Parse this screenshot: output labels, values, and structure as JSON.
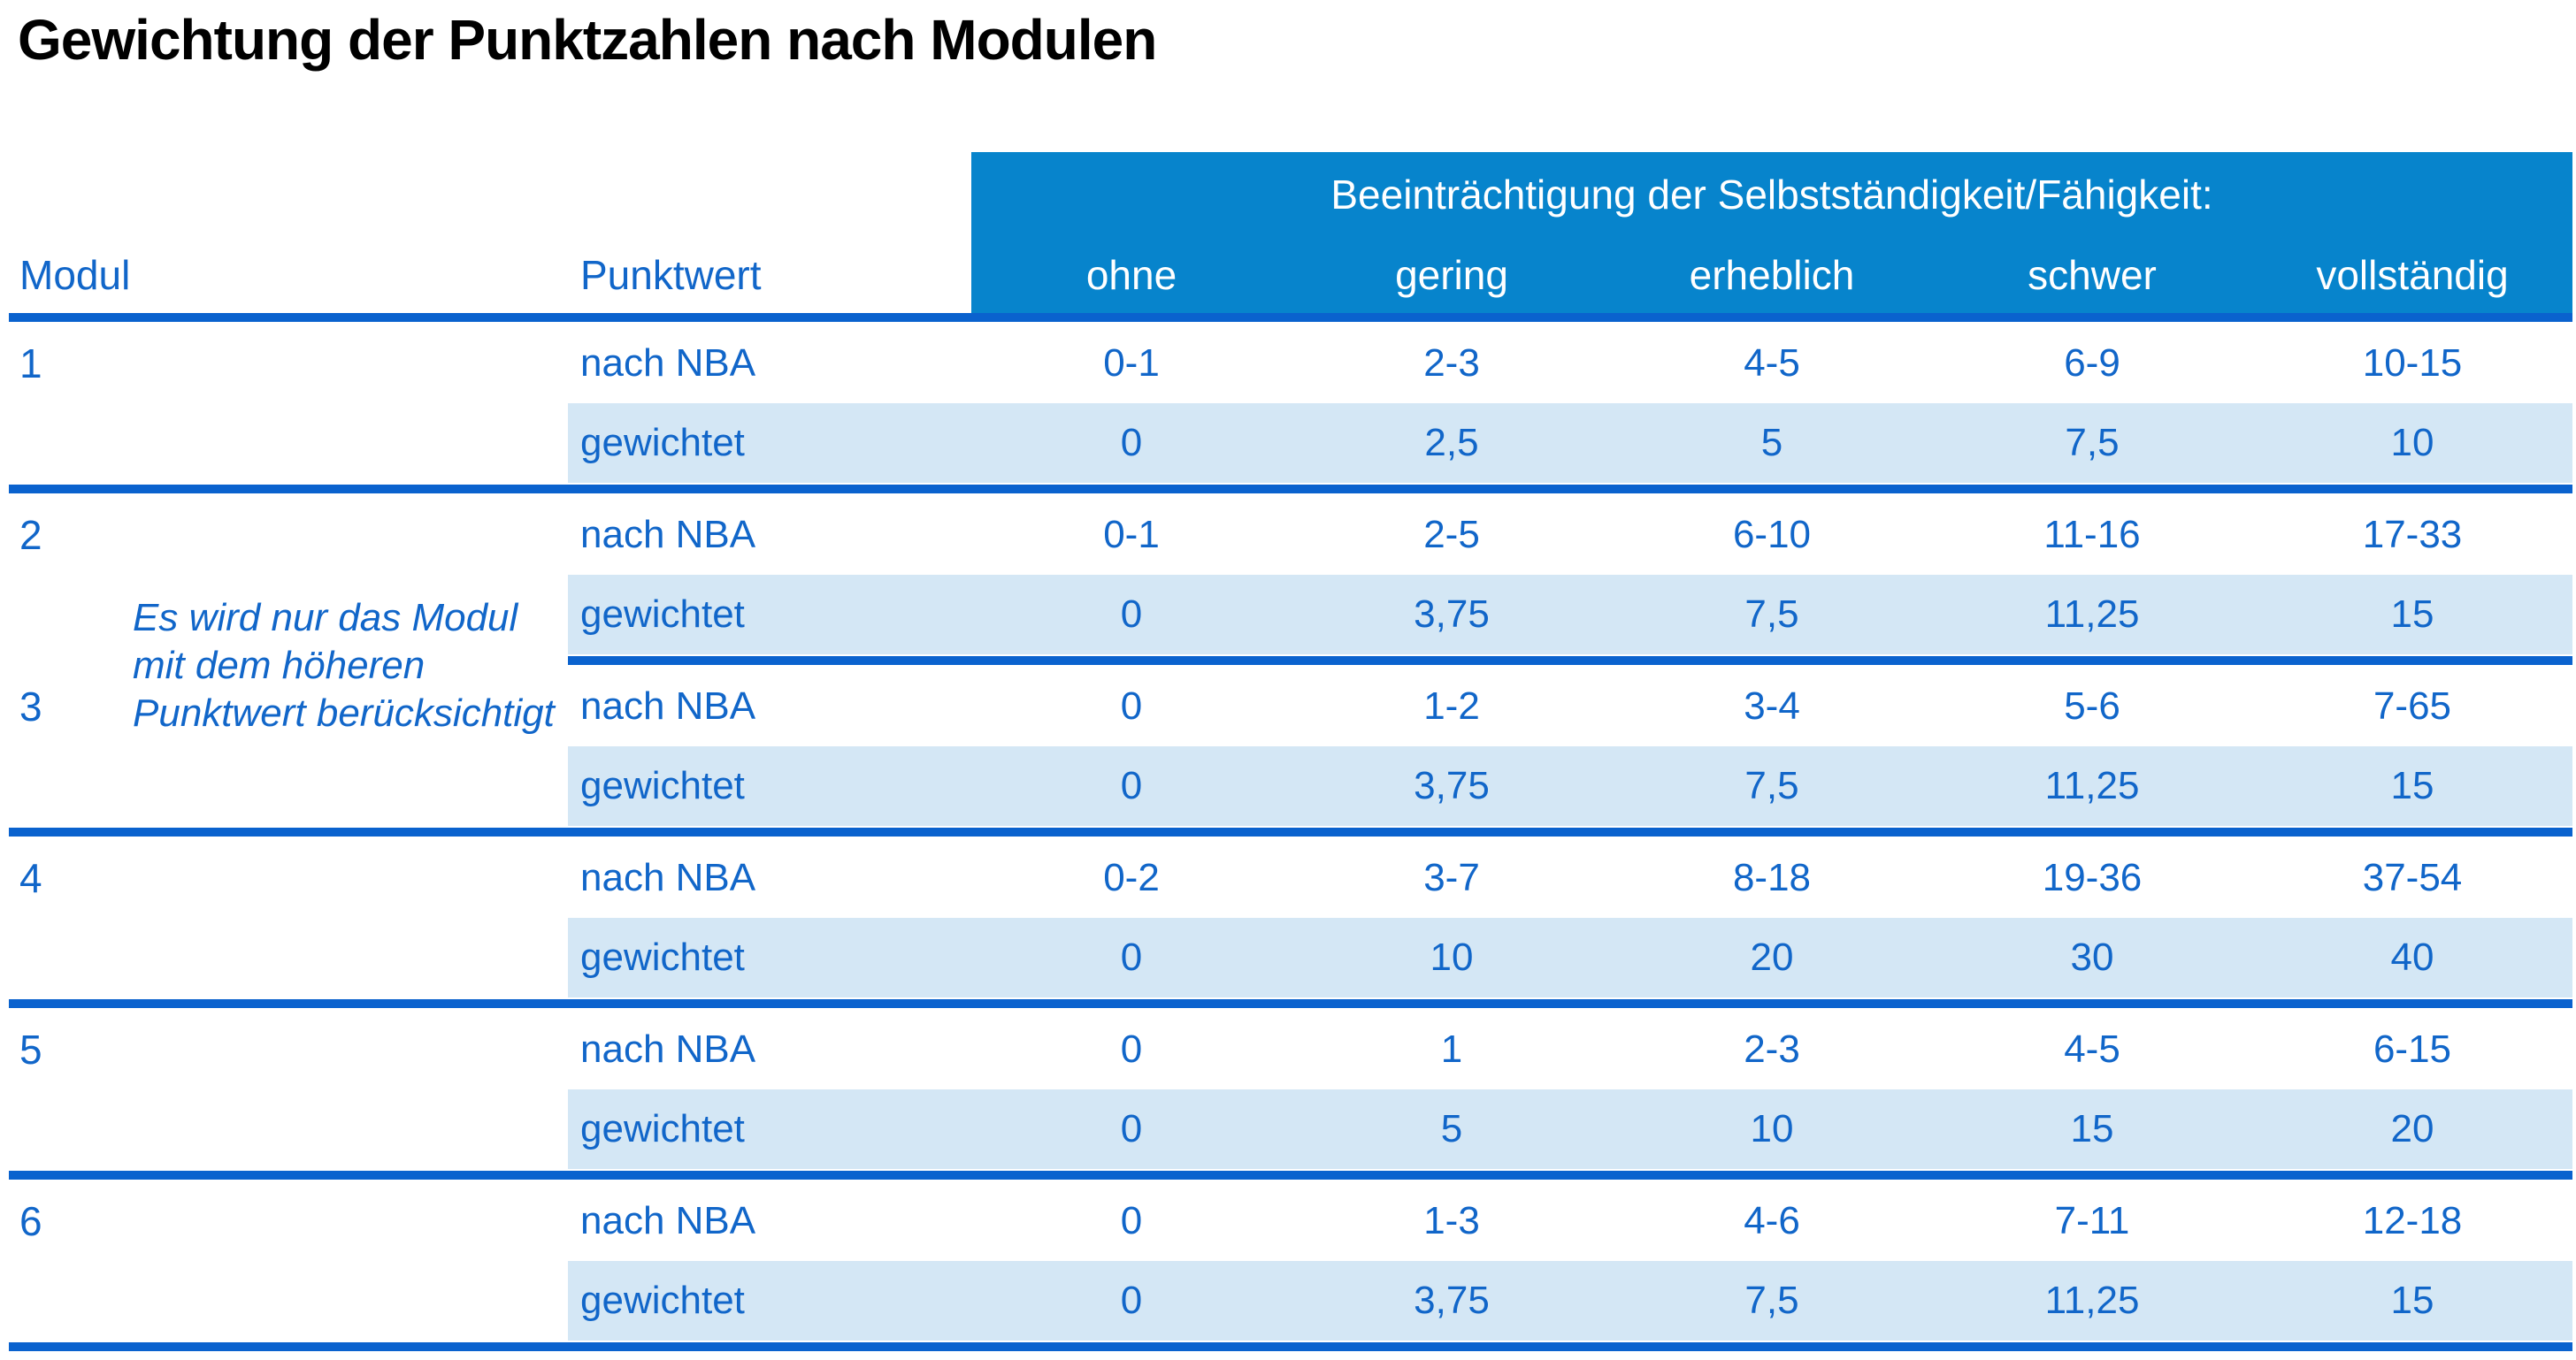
{
  "title": "Gewichtung der Punktzahlen nach Modulen",
  "table": {
    "col_modul": "Modul",
    "col_punktwert": "Punktwert",
    "band_title": "Beeinträchtigung der Selbstständigkeit/Fähigkeit:",
    "severity_labels": [
      "ohne",
      "gering",
      "erheblich",
      "schwer",
      "vollständig"
    ],
    "row_label_nba": "nach NBA",
    "row_label_weighted": "gewichtet",
    "note_lines": [
      "Es wird nur das Modul",
      "mit dem höheren",
      "Punktwert berücksichtigt"
    ],
    "modules": [
      {
        "id": "1",
        "nba": [
          "0-1",
          "2-3",
          "4-5",
          "6-9",
          "10-15"
        ],
        "gewichtet": [
          "0",
          "2,5",
          "5",
          "7,5",
          "10"
        ]
      },
      {
        "id": "2",
        "nba": [
          "0-1",
          "2-5",
          "6-10",
          "11-16",
          "17-33"
        ],
        "gewichtet": [
          "0",
          "3,75",
          "7,5",
          "11,25",
          "15"
        ]
      },
      {
        "id": "3",
        "nba": [
          "0",
          "1-2",
          "3-4",
          "5-6",
          "7-65"
        ],
        "gewichtet": [
          "0",
          "3,75",
          "7,5",
          "11,25",
          "15"
        ]
      },
      {
        "id": "4",
        "nba": [
          "0-2",
          "3-7",
          "8-18",
          "19-36",
          "37-54"
        ],
        "gewichtet": [
          "0",
          "10",
          "20",
          "30",
          "40"
        ]
      },
      {
        "id": "5",
        "nba": [
          "0",
          "1",
          "2-3",
          "4-5",
          "6-15"
        ],
        "gewichtet": [
          "0",
          "5",
          "10",
          "15",
          "20"
        ]
      },
      {
        "id": "6",
        "nba": [
          "0",
          "1-3",
          "4-6",
          "7-11",
          "12-18"
        ],
        "gewichtet": [
          "0",
          "3,75",
          "7,5",
          "11,25",
          "15"
        ]
      }
    ],
    "colors": {
      "band_blue": "#0784CC",
      "line_blue": "#0A62CE",
      "text_blue": "#1166C9",
      "row_bg": "#D4E7F5",
      "title_black": "#000000",
      "page_bg": "#FFFFFF"
    }
  }
}
